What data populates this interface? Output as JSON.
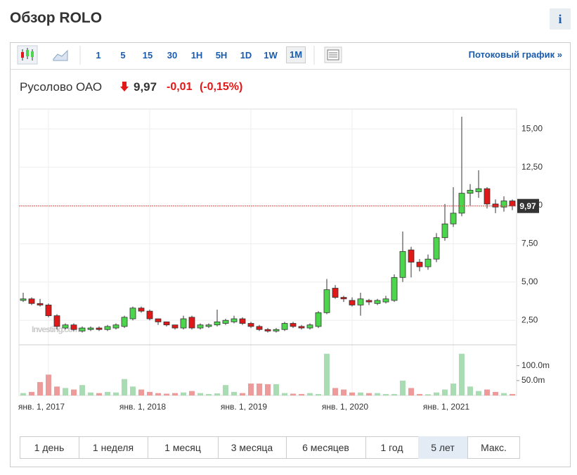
{
  "header": {
    "title": "Обзор ROLO",
    "info": "i"
  },
  "toolbar": {
    "intervals": [
      "1",
      "5",
      "15",
      "30",
      "1H",
      "5H",
      "1D",
      "1W",
      "1M"
    ],
    "active_interval": 8,
    "streaming": "Потоковый график »"
  },
  "quote": {
    "name": "Русолово ОАО",
    "price": "9,97",
    "change": "-0,01",
    "change_percent": "(-0,15%)"
  },
  "periods": {
    "items": [
      "1 день",
      "1 неделя",
      "1 месяц",
      "3 месяца",
      "6 месяцев",
      "1 год",
      "5 лет",
      "Макс."
    ],
    "active": 6
  },
  "chart_data": {
    "type": "candlestick",
    "watermark": "Investing.com",
    "categories": [
      null,
      null,
      null,
      "янв. 1, 2017",
      null,
      null,
      null,
      null,
      null,
      null,
      null,
      null,
      null,
      null,
      null,
      "янв. 1, 2018",
      null,
      null,
      null,
      null,
      null,
      null,
      null,
      null,
      null,
      null,
      null,
      "янв. 1, 2019",
      null,
      null,
      null,
      null,
      null,
      null,
      null,
      null,
      null,
      null,
      null,
      "янв. 1, 2020",
      null,
      null,
      null,
      null,
      null,
      null,
      null,
      null,
      null,
      null,
      null,
      "янв. 1, 2021",
      null,
      null,
      null,
      null,
      null,
      null,
      null
    ],
    "open": [
      3.8,
      3.9,
      3.6,
      3.5,
      2.8,
      2.0,
      2.2,
      1.8,
      1.9,
      2.0,
      1.9,
      2.0,
      2.1,
      2.6,
      3.3,
      3.1,
      2.6,
      2.4,
      2.2,
      2.0,
      2.7,
      2.0,
      2.1,
      2.2,
      2.3,
      2.4,
      2.6,
      2.3,
      2.1,
      1.9,
      1.8,
      1.9,
      2.3,
      2.1,
      2.0,
      2.1,
      3.0,
      4.6,
      4.0,
      3.8,
      3.5,
      3.8,
      3.6,
      3.7,
      3.8,
      5.3,
      7.1,
      6.3,
      6.0,
      6.5,
      7.9,
      8.8,
      9.5,
      10.8,
      10.9,
      11.1,
      10.1,
      9.9,
      10.3
    ],
    "high": [
      4.3,
      4.0,
      3.9,
      3.6,
      2.9,
      2.3,
      2.3,
      2.1,
      2.1,
      2.1,
      2.2,
      2.3,
      2.8,
      3.4,
      3.4,
      3.2,
      2.6,
      2.4,
      2.2,
      2.8,
      2.8,
      2.3,
      2.3,
      3.2,
      2.6,
      2.8,
      2.7,
      2.4,
      2.2,
      2.0,
      2.0,
      2.4,
      2.4,
      2.2,
      2.3,
      3.1,
      5.2,
      4.8,
      4.1,
      4.0,
      4.3,
      3.9,
      3.9,
      4.1,
      5.5,
      8.3,
      7.3,
      6.5,
      6.8,
      8.2,
      10.1,
      11.2,
      15.8,
      11.4,
      12.3,
      11.2,
      10.4,
      10.6,
      10.4
    ],
    "low": [
      3.7,
      3.5,
      3.4,
      2.7,
      1.9,
      1.9,
      1.8,
      1.7,
      1.8,
      1.8,
      1.8,
      1.9,
      2.0,
      2.5,
      3.0,
      2.5,
      2.2,
      2.1,
      1.9,
      1.9,
      1.9,
      1.9,
      2.0,
      2.1,
      2.2,
      2.3,
      2.2,
      2.0,
      1.8,
      1.7,
      1.7,
      1.8,
      2.0,
      1.9,
      1.9,
      2.0,
      2.9,
      3.9,
      3.7,
      3.4,
      2.8,
      3.5,
      3.5,
      3.6,
      3.7,
      5.0,
      5.3,
      5.7,
      5.8,
      6.3,
      7.7,
      8.6,
      9.3,
      10.0,
      10.5,
      9.8,
      9.5,
      9.6,
      9.7
    ],
    "close": [
      3.9,
      3.6,
      3.5,
      2.8,
      2.1,
      2.2,
      1.9,
      2.0,
      2.0,
      1.9,
      2.1,
      2.2,
      2.7,
      3.3,
      3.1,
      2.6,
      2.4,
      2.2,
      2.0,
      2.6,
      2.0,
      2.2,
      2.2,
      2.4,
      2.5,
      2.6,
      2.3,
      2.1,
      1.9,
      1.8,
      1.9,
      2.3,
      2.1,
      2.0,
      2.2,
      3.0,
      4.5,
      4.0,
      3.9,
      3.5,
      3.9,
      3.7,
      3.8,
      3.9,
      5.3,
      7.0,
      6.3,
      6.0,
      6.5,
      7.9,
      8.8,
      9.5,
      10.8,
      11.0,
      11.1,
      10.1,
      9.9,
      10.3,
      9.97
    ],
    "volume": [
      8000000,
      12000000,
      45000000,
      70000000,
      30000000,
      25000000,
      20000000,
      35000000,
      10000000,
      8000000,
      12000000,
      10000000,
      55000000,
      30000000,
      20000000,
      12000000,
      8000000,
      6000000,
      8000000,
      10000000,
      15000000,
      8000000,
      5000000,
      7000000,
      35000000,
      12000000,
      8000000,
      40000000,
      40000000,
      38000000,
      38000000,
      8000000,
      6000000,
      5000000,
      8000000,
      5000000,
      140000000,
      25000000,
      20000000,
      10000000,
      10000000,
      8000000,
      8000000,
      5000000,
      5000000,
      50000000,
      25000000,
      5000000,
      4000000,
      10000000,
      20000000,
      40000000,
      140000000,
      30000000,
      15000000,
      20000000,
      12000000,
      8000000,
      5000000
    ],
    "ylim": [
      0.9,
      16.3
    ],
    "yticks": [
      {
        "value": 2.5,
        "label": "2,50"
      },
      {
        "value": 5,
        "label": "5,00"
      },
      {
        "value": 7.5,
        "label": "7,50"
      },
      {
        "value": 10,
        "label": "10,00"
      },
      {
        "value": 12.5,
        "label": "12,50"
      },
      {
        "value": 15,
        "label": "15,00"
      }
    ],
    "volume_lim": [
      0,
      170000000
    ],
    "volume_ticks": [
      {
        "value": 50000000,
        "label": "50.0m"
      },
      {
        "value": 100000000,
        "label": "100.0m"
      }
    ],
    "last_price": {
      "value": 9.97,
      "label": "9,97"
    },
    "up_color": "#4cd64c",
    "down_color": "#e01818",
    "volume_up_color": "#a9dcb3",
    "volume_down_color": "#ec9a9a",
    "price_line_color": "#e05050",
    "grid": true
  }
}
